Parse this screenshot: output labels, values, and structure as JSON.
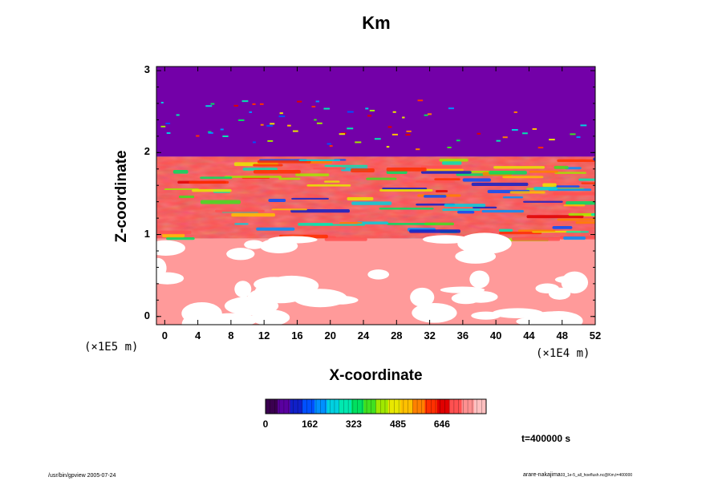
{
  "chart_data": {
    "type": "heatmap",
    "title": "Km",
    "xlabel": "X-coordinate",
    "ylabel": "Z-coordinate",
    "x_scale_label": "(×1E4 m)",
    "y_scale_label": "(×1E5 m)",
    "xlim": [
      -1,
      52
    ],
    "ylim": [
      -0.1,
      3.05
    ],
    "x_ticks": [
      "0",
      "4",
      "8",
      "12",
      "16",
      "20",
      "24",
      "28",
      "32",
      "36",
      "40",
      "44",
      "48",
      "52"
    ],
    "y_ticks": [
      "0",
      "1",
      "2",
      "3"
    ],
    "colorbar": {
      "min": 0,
      "max": 808,
      "ticks": [
        "0",
        "162",
        "323",
        "485",
        "646"
      ],
      "colors": [
        "#3a0050",
        "#5a00a0",
        "#1020c8",
        "#0050ff",
        "#0090ff",
        "#00d0e0",
        "#00e8b0",
        "#00e060",
        "#40e020",
        "#a0e800",
        "#e8e800",
        "#ffc000",
        "#ff8000",
        "#ff3000",
        "#e00000",
        "#ff5050",
        "#ff9090",
        "#ffc0c0"
      ]
    },
    "regions": [
      {
        "description": "uniform upper layer",
        "z_range": [
          1.95,
          3.05
        ],
        "level_color": "#7300a8"
      },
      {
        "description": "turbulent mixed band",
        "z_range": [
          0.95,
          1.95
        ],
        "level_color": "#ff5050"
      },
      {
        "description": "lower layer with sparse eddies",
        "z_range": [
          -0.1,
          0.95
        ],
        "level_color": "#ff9a9a"
      }
    ]
  },
  "annotations": {
    "time": "t=400000 s",
    "footer_left": "/usr/bin/gpview 2005-07-24",
    "footer_right_main": "arare-nakajima",
    "footer_right_detail": "03_1e-5_all_hoeflush.nc@Km,t=400000"
  }
}
